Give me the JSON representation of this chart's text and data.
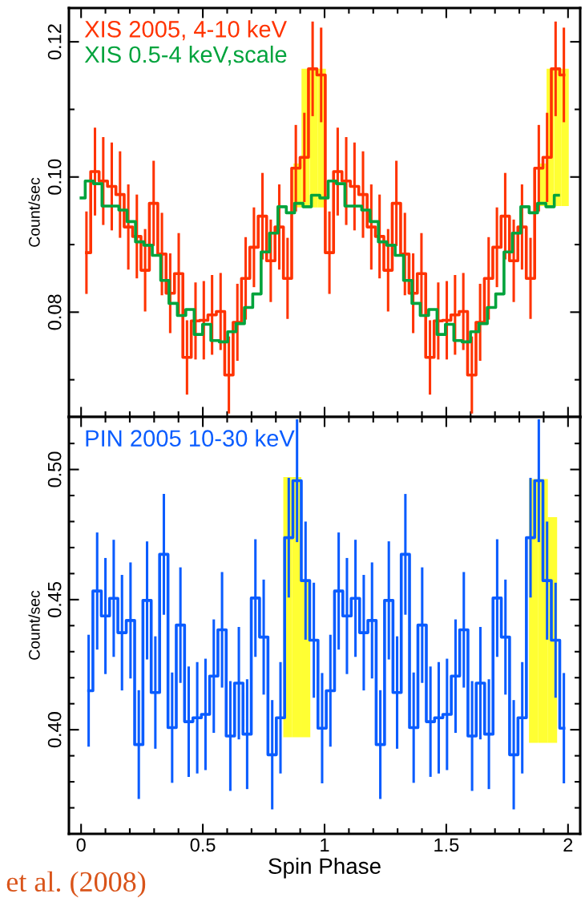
{
  "chart_data": [
    {
      "type": "step",
      "ylabel": "Count/sec",
      "xlim": [
        -0.05,
        2.05
      ],
      "ylim": [
        0.0645,
        0.125
      ],
      "legend": "top left",
      "tick_labels": "y",
      "xticks": [
        0,
        {
          "value": 0.1,
          "label": null
        },
        {
          "value": 0.2,
          "label": null
        },
        {
          "value": 0.3,
          "label": null
        },
        {
          "value": 0.4,
          "label": null
        },
        0.5,
        {
          "value": 0.6,
          "label": null
        },
        {
          "value": 0.7,
          "label": null
        },
        {
          "value": 0.8,
          "label": null
        },
        {
          "value": 0.9,
          "label": null
        },
        1,
        {
          "value": 1.1,
          "label": null
        },
        {
          "value": 1.2,
          "label": null
        },
        {
          "value": 1.3,
          "label": null
        },
        {
          "value": 1.4,
          "label": null
        },
        1.5,
        {
          "value": 1.6,
          "label": null
        },
        {
          "value": 1.7,
          "label": null
        },
        {
          "value": 1.8,
          "label": null
        },
        {
          "value": 1.9,
          "label": null
        },
        2
      ],
      "yticks": [
        {
          "value": 0.07,
          "label": null
        },
        {
          "value": 0.08,
          "label": "0.08"
        },
        {
          "value": 0.09,
          "label": null
        },
        {
          "value": 0.1,
          "label": "0.10"
        },
        {
          "value": 0.11,
          "label": null
        },
        {
          "value": 0.12,
          "label": "0.12"
        }
      ],
      "series": [
        {
          "type": "bar",
          "color": "#ffff33",
          "x": [
            0.889,
            0.922,
            0.956,
            0.989
          ],
          "values": [
            0.0065,
            0.0205,
            0.0205,
            0.0205
          ],
          "base": [
            0.0955,
            0.0955,
            0.0955,
            0.0955
          ]
        },
        {
          "type": "bar",
          "color": "#ffff33",
          "x": [
            1.897,
            1.927,
            1.958,
            1.988
          ],
          "values": [
            0.0063,
            0.0203,
            0.0203,
            0.0203
          ],
          "base": [
            0.0957,
            0.0957,
            0.0957,
            0.0957
          ]
        },
        {
          "name": "XIS 2005, 4-10 keV",
          "color": "#ff3300",
          "x": [
            0.022,
            0.057,
            0.091,
            0.126,
            0.16,
            0.194,
            0.229,
            0.263,
            0.298,
            0.332,
            0.366,
            0.401,
            0.435,
            0.47,
            0.504,
            0.538,
            0.573,
            0.607,
            0.642,
            0.676,
            0.71,
            0.745,
            0.779,
            0.814,
            0.848,
            0.882,
            0.917,
            0.951,
            0.986,
            1.02,
            1.054,
            1.089,
            1.123,
            1.158,
            1.192,
            1.226,
            1.261,
            1.295,
            1.33,
            1.364,
            1.398,
            1.433,
            1.467,
            1.502,
            1.536,
            1.57,
            1.605,
            1.639,
            1.674,
            1.708,
            1.742,
            1.777,
            1.811,
            1.846,
            1.88,
            1.914,
            1.949,
            1.983
          ],
          "values": [
            0.0888,
            0.1008,
            0.0994,
            0.0986,
            0.0974,
            0.0926,
            0.0912,
            0.0862,
            0.0961,
            0.0886,
            0.0828,
            0.0857,
            0.0733,
            0.0787,
            0.0788,
            0.0796,
            0.0801,
            0.0707,
            0.0785,
            0.085,
            0.0896,
            0.0942,
            0.0876,
            0.0926,
            0.085,
            0.1013,
            0.1029,
            0.116,
            0.1151,
            0.0888,
            0.1008,
            0.0994,
            0.0986,
            0.0974,
            0.0926,
            0.0912,
            0.0862,
            0.0961,
            0.0886,
            0.0828,
            0.0857,
            0.0733,
            0.0787,
            0.0788,
            0.0796,
            0.0801,
            0.0707,
            0.0785,
            0.085,
            0.0896,
            0.0942,
            0.0876,
            0.0926,
            0.085,
            0.1013,
            0.1029,
            0.116,
            0.1151
          ],
          "errors": [
            0.0061,
            0.0065,
            0.0065,
            0.0065,
            0.0064,
            0.0063,
            0.0062,
            0.0061,
            0.0063,
            0.0061,
            0.0059,
            0.006,
            0.0055,
            0.0057,
            0.0058,
            0.0059,
            0.0057,
            0.0057,
            0.0057,
            0.0061,
            0.0059,
            0.0064,
            0.0061,
            0.0063,
            0.006,
            0.0064,
            0.0066,
            0.007,
            0.007,
            0.0061,
            0.0065,
            0.0065,
            0.0065,
            0.0064,
            0.0063,
            0.0062,
            0.0061,
            0.0063,
            0.0061,
            0.0059,
            0.006,
            0.0055,
            0.0057,
            0.0058,
            0.0059,
            0.0057,
            0.0057,
            0.0057,
            0.0061,
            0.0059,
            0.0064,
            0.0061,
            0.0063,
            0.006,
            0.0064,
            0.0066,
            0.007,
            0.007
          ]
        },
        {
          "name": "XIS 0.5-4 keV,scale",
          "color": "#00a33c",
          "x": [
            0,
            0.034,
            0.069,
            0.103,
            0.138,
            0.172,
            0.206,
            0.241,
            0.275,
            0.31,
            0.344,
            0.378,
            0.413,
            0.447,
            0.482,
            0.516,
            0.55,
            0.585,
            0.619,
            0.654,
            0.688,
            0.722,
            0.757,
            0.791,
            0.826,
            0.86,
            0.894,
            0.929,
            0.963,
            0.998,
            1.032,
            1.066,
            1.101,
            1.135,
            1.17,
            1.204,
            1.238,
            1.273,
            1.307,
            1.342,
            1.376,
            1.41,
            1.445,
            1.479,
            1.514,
            1.548,
            1.582,
            1.617,
            1.651,
            1.686,
            1.72,
            1.754,
            1.789,
            1.823,
            1.858,
            1.892,
            1.926,
            1.961
          ],
          "values": [
            0.0969,
            0.0994,
            0.099,
            0.0957,
            0.0957,
            0.0951,
            0.0934,
            0.0904,
            0.0899,
            0.0884,
            0.0847,
            0.0813,
            0.0795,
            0.0804,
            0.0767,
            0.0782,
            0.0758,
            0.0756,
            0.0771,
            0.0783,
            0.0807,
            0.0827,
            0.0889,
            0.0917,
            0.0956,
            0.0947,
            0.0961,
            0.0956,
            0.0973,
            0.0969,
            0.0994,
            0.099,
            0.0957,
            0.0957,
            0.0951,
            0.0934,
            0.0904,
            0.0899,
            0.0884,
            0.0847,
            0.0813,
            0.0795,
            0.0804,
            0.0767,
            0.0782,
            0.0758,
            0.0756,
            0.0771,
            0.0783,
            0.0807,
            0.0827,
            0.0889,
            0.0917,
            0.0956,
            0.0947,
            0.0961,
            0.0956,
            0.0973
          ]
        }
      ]
    },
    {
      "type": "step",
      "ylabel": "Count/sec",
      "xlabel": "Spin Phase",
      "xlim": [
        -0.05,
        2.05
      ],
      "ylim": [
        0.36,
        0.5202
      ],
      "legend": "top left",
      "xticks": [
        0,
        {
          "value": 0.1,
          "label": null
        },
        {
          "value": 0.2,
          "label": null
        },
        {
          "value": 0.3,
          "label": null
        },
        {
          "value": 0.4,
          "label": null
        },
        0.5,
        {
          "value": 0.6,
          "label": null
        },
        {
          "value": 0.7,
          "label": null
        },
        {
          "value": 0.8,
          "label": null
        },
        {
          "value": 0.9,
          "label": null
        },
        1,
        {
          "value": 1.1,
          "label": null
        },
        {
          "value": 1.2,
          "label": null
        },
        {
          "value": 1.3,
          "label": null
        },
        {
          "value": 1.4,
          "label": null
        },
        1.5,
        {
          "value": 1.6,
          "label": null
        },
        {
          "value": 1.7,
          "label": null
        },
        {
          "value": 1.8,
          "label": null
        },
        {
          "value": 1.9,
          "label": null
        },
        2
      ],
      "yticks": [
        {
          "value": 0.37,
          "label": null
        },
        {
          "value": 0.38,
          "label": null
        },
        {
          "value": 0.39,
          "label": null
        },
        {
          "value": 0.4,
          "label": "0.40"
        },
        {
          "value": 0.41,
          "label": null
        },
        {
          "value": 0.42,
          "label": null
        },
        {
          "value": 0.43,
          "label": null
        },
        {
          "value": 0.44,
          "label": null
        },
        {
          "value": 0.45,
          "label": "0.45"
        },
        {
          "value": 0.46,
          "label": null
        },
        {
          "value": 0.47,
          "label": null
        },
        {
          "value": 0.48,
          "label": null
        },
        {
          "value": 0.49,
          "label": null
        },
        {
          "value": 0.5,
          "label": "0.50"
        },
        {
          "value": 0.51,
          "label": null
        }
      ],
      "annotations": [
        "et al. (2008)"
      ],
      "series": [
        {
          "type": "bar",
          "color": "#ffff33",
          "x": [
            0.849,
            0.886,
            0.923
          ],
          "values": [
            0.1,
            0.1,
            0.0602
          ],
          "base": [
            0.3971,
            0.3971,
            0.3971
          ]
        },
        {
          "type": "bar",
          "color": "#ffff33",
          "x": [
            1.859,
            1.898,
            1.936
          ],
          "values": [
            0.1013,
            0.1013,
            0.0867
          ],
          "base": [
            0.395,
            0.395,
            0.395
          ]
        },
        {
          "name": "PIN 2005 10-30 keV",
          "color": "#0a5cff",
          "x": [
            0.031,
            0.066,
            0.1,
            0.134,
            0.168,
            0.203,
            0.237,
            0.271,
            0.305,
            0.34,
            0.374,
            0.408,
            0.442,
            0.477,
            0.511,
            0.545,
            0.579,
            0.613,
            0.648,
            0.682,
            0.716,
            0.75,
            0.785,
            0.819,
            0.853,
            0.887,
            0.922,
            0.956,
            0.99,
            1.024,
            1.058,
            1.092,
            1.127,
            1.161,
            1.195,
            1.229,
            1.264,
            1.298,
            1.332,
            1.366,
            1.401,
            1.435,
            1.469,
            1.503,
            1.538,
            1.572,
            1.606,
            1.64,
            1.675,
            1.709,
            1.743,
            1.777,
            1.812,
            1.846,
            1.88,
            1.914,
            1.949,
            1.983
          ],
          "values": [
            0.415,
            0.4533,
            0.4437,
            0.4505,
            0.4373,
            0.442,
            0.3943,
            0.4497,
            0.4143,
            0.4674,
            0.4008,
            0.4402,
            0.4031,
            0.4046,
            0.4059,
            0.4206,
            0.4384,
            0.3976,
            0.4179,
            0.3983,
            0.4506,
            0.4356,
            0.3904,
            0.4046,
            0.4738,
            0.4957,
            0.4573,
            0.4344,
            0.4006,
            0.415,
            0.4533,
            0.4437,
            0.4505,
            0.4373,
            0.442,
            0.3943,
            0.4497,
            0.4143,
            0.4674,
            0.4008,
            0.4402,
            0.4031,
            0.4046,
            0.4059,
            0.4206,
            0.4384,
            0.3976,
            0.4179,
            0.3983,
            0.4506,
            0.4356,
            0.3904,
            0.4046,
            0.4738,
            0.4957,
            0.4573,
            0.4344,
            0.4006
          ],
          "errors": [
            0.0215,
            0.0225,
            0.0223,
            0.0225,
            0.0222,
            0.0223,
            0.0209,
            0.0227,
            0.0216,
            0.0232,
            0.0212,
            0.0222,
            0.0212,
            0.0214,
            0.0214,
            0.0218,
            0.0222,
            0.0211,
            0.0216,
            0.0211,
            0.0226,
            0.0221,
            0.021,
            0.0214,
            0.023,
            0.0236,
            0.0227,
            0.0221,
            0.0212,
            0.0215,
            0.0225,
            0.0223,
            0.0225,
            0.0222,
            0.0223,
            0.0209,
            0.0227,
            0.0216,
            0.0232,
            0.0212,
            0.0222,
            0.0212,
            0.0214,
            0.0214,
            0.0218,
            0.0222,
            0.0211,
            0.0216,
            0.0211,
            0.0226,
            0.0221,
            0.021,
            0.0214,
            0.023,
            0.0236,
            0.0227,
            0.0221,
            0.0212
          ]
        }
      ]
    }
  ]
}
